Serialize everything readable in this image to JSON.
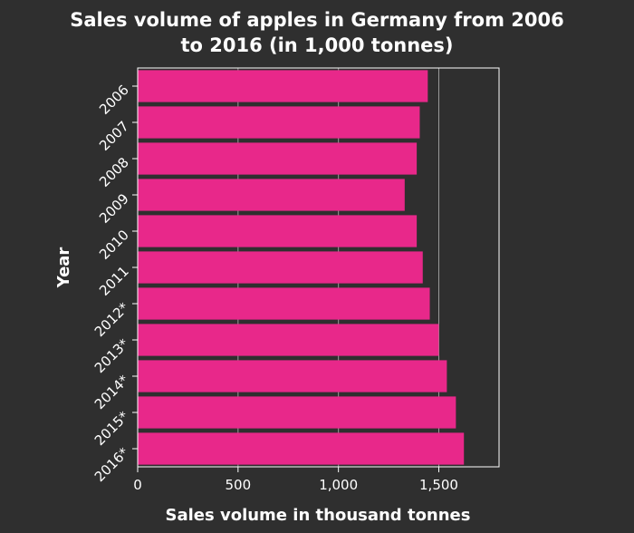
{
  "chart_data": {
    "type": "bar",
    "orientation": "horizontal",
    "title_lines": [
      "Sales volume of apples in Germany from 2006",
      "to 2016 (in 1,000 tonnes)"
    ],
    "xlabel": "Sales volume in thousand tonnes",
    "ylabel": "Year",
    "categories": [
      "2006",
      "2007",
      "2008",
      "2009",
      "2010",
      "2011",
      "2012*",
      "2013*",
      "2014*",
      "2015*",
      "2016*"
    ],
    "values": [
      1445,
      1405,
      1390,
      1330,
      1390,
      1420,
      1455,
      1500,
      1540,
      1585,
      1625
    ],
    "xlim": [
      0,
      1800
    ],
    "xticks": [
      0,
      500,
      1000,
      1500
    ],
    "xtick_labels": [
      "0",
      "500",
      "1,000",
      "1,500"
    ],
    "grid": "vertical",
    "bar_color": "#e8288a",
    "background_color": "#2f2f2f",
    "plot_background_color": "#2f2f2f",
    "grid_color": "#9a9a9a"
  }
}
